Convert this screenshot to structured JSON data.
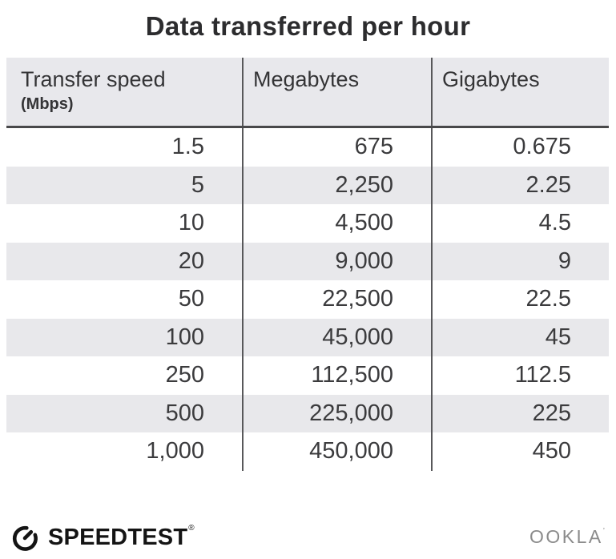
{
  "title": "Data transferred per hour",
  "table": {
    "columns": [
      {
        "label": "Transfer speed",
        "sublabel": "(Mbps)"
      },
      {
        "label": "Megabytes"
      },
      {
        "label": "Gigabytes"
      }
    ],
    "rows": [
      [
        "1.5",
        "675",
        "0.675"
      ],
      [
        "5",
        "2,250",
        "2.25"
      ],
      [
        "10",
        "4,500",
        "4.5"
      ],
      [
        "20",
        "9,000",
        "9"
      ],
      [
        "50",
        "22,500",
        "22.5"
      ],
      [
        "100",
        "45,000",
        "45"
      ],
      [
        "250",
        "112,500",
        "112.5"
      ],
      [
        "500",
        "225,000",
        "225"
      ],
      [
        "1,000",
        "450,000",
        "450"
      ]
    ]
  },
  "footer": {
    "brand": "SPEEDTEST",
    "brand_mark": "®",
    "company": "OOKLA",
    "company_mark": "’",
    "icon": "speedometer-gauge-icon"
  },
  "colors": {
    "header_bg": "#e8e8ec",
    "row_alt": "#e8e8eb",
    "header_rule": "#48484a",
    "column_divider": "#58585a",
    "number_text": "#3b3b3d",
    "title_text": "#2c2c2e",
    "brand_black": "#141414",
    "ookla_gray": "#8b8b8b"
  },
  "chart_data": {
    "type": "table",
    "title": "Data transferred per hour",
    "columns": [
      "Transfer speed (Mbps)",
      "Megabytes",
      "Gigabytes"
    ],
    "rows": [
      [
        1.5,
        675,
        0.675
      ],
      [
        5,
        2250,
        2.25
      ],
      [
        10,
        4500,
        4.5
      ],
      [
        20,
        9000,
        9
      ],
      [
        50,
        22500,
        22.5
      ],
      [
        100,
        45000,
        45
      ],
      [
        250,
        112500,
        112.5
      ],
      [
        500,
        225000,
        225
      ],
      [
        1000,
        450000,
        450
      ]
    ]
  }
}
